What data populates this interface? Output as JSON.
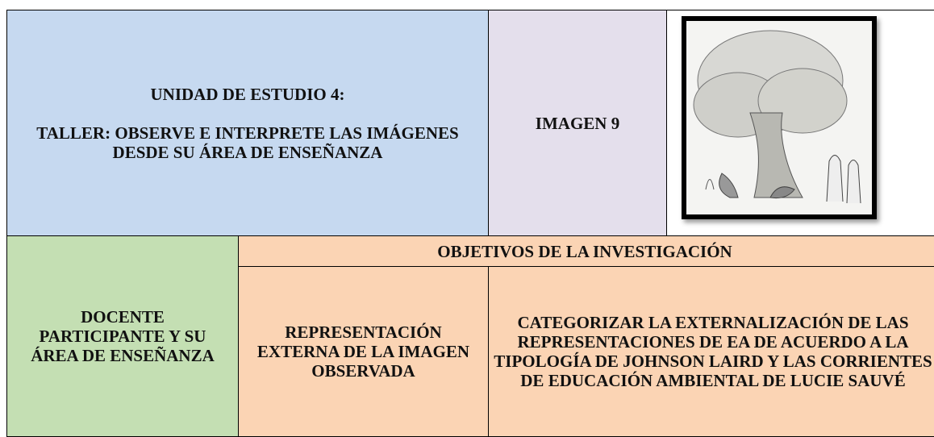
{
  "header": {
    "unit": "UNIDAD DE ESTUDIO 4:",
    "workshop": "TALLER: OBSERVE E INTERPRETE LAS IMÁGENES DESDE SU ÁREA DE ENSEÑANZA",
    "image_label": "IMAGEN 9"
  },
  "table": {
    "objectives_title": "OBJETIVOS DE LA INVESTIGACIÓN",
    "participant": "DOCENTE PARTICIPANTE Y SU ÁREA DE ENSEÑANZA",
    "columns": [
      "REPRESENTACIÓN EXTERNA DE LA IMAGEN OBSERVADA",
      "CATEGORIZAR LA EXTERNALIZACIÓN DE LAS REPRESENTACIONES DE EA DE ACUERDO A LA TIPOLOGÍA DE JOHNSON LAIRD Y LAS CORRIENTES DE EDUCACIÓN AMBIENTAL DE LUCIE SAUVÉ"
    ]
  }
}
